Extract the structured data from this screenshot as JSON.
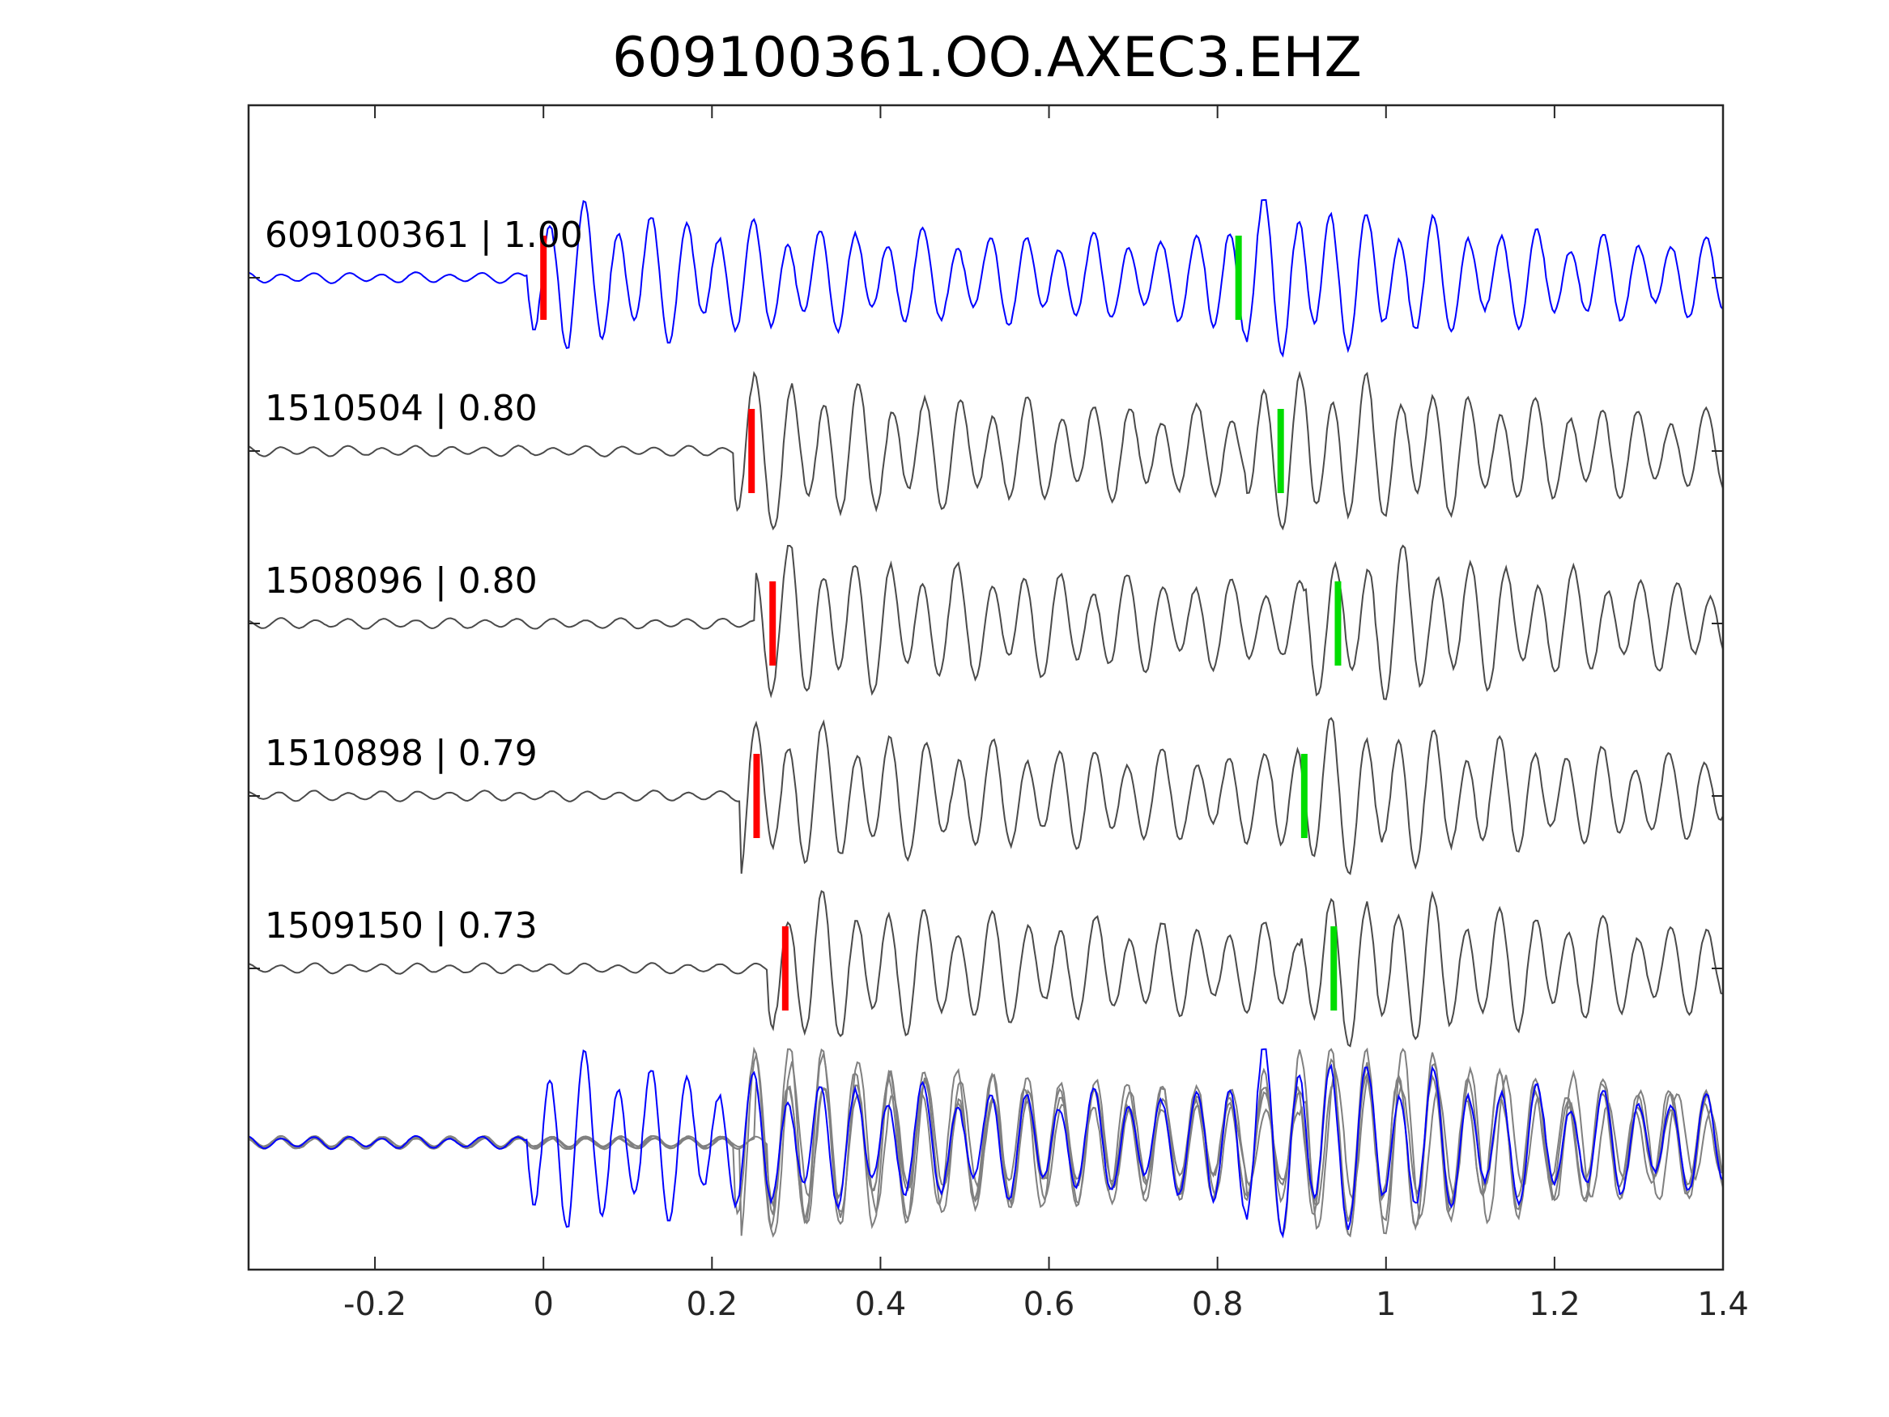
{
  "chart_data": {
    "type": "line",
    "title": "609100361.OO.AXEC3.EHZ",
    "xlabel": "",
    "ylabel": "",
    "xlim": [
      -0.35,
      1.4
    ],
    "xticks": [
      -0.2,
      0,
      0.2,
      0.4,
      0.6,
      0.8,
      1,
      1.2,
      1.4
    ],
    "xtick_labels": [
      "-0.2",
      "0",
      "0.2",
      "0.4",
      "0.6",
      "0.8",
      "1",
      "1.2",
      "1.4"
    ],
    "grid": false,
    "colors": {
      "template": "#0000ff",
      "match": "#4a4a4a",
      "overlay": "#808080",
      "p_pick": "#ff0000",
      "s_pick": "#00dd00",
      "axes": "#262626"
    },
    "series": [
      {
        "label": "609100361 | 1.00",
        "p_pick": 0.0,
        "s_pick": 0.825,
        "seed": 11
      },
      {
        "label": "1510504 | 0.80",
        "p_pick": 0.247,
        "s_pick": 0.875,
        "seed": 23
      },
      {
        "label": "1508096 | 0.80",
        "p_pick": 0.272,
        "s_pick": 0.943,
        "seed": 37
      },
      {
        "label": "1510898 | 0.79",
        "p_pick": 0.253,
        "s_pick": 0.903,
        "seed": 41
      },
      {
        "label": "1509150 | 0.73",
        "p_pick": 0.287,
        "s_pick": 0.938,
        "seed": 53
      }
    ]
  }
}
